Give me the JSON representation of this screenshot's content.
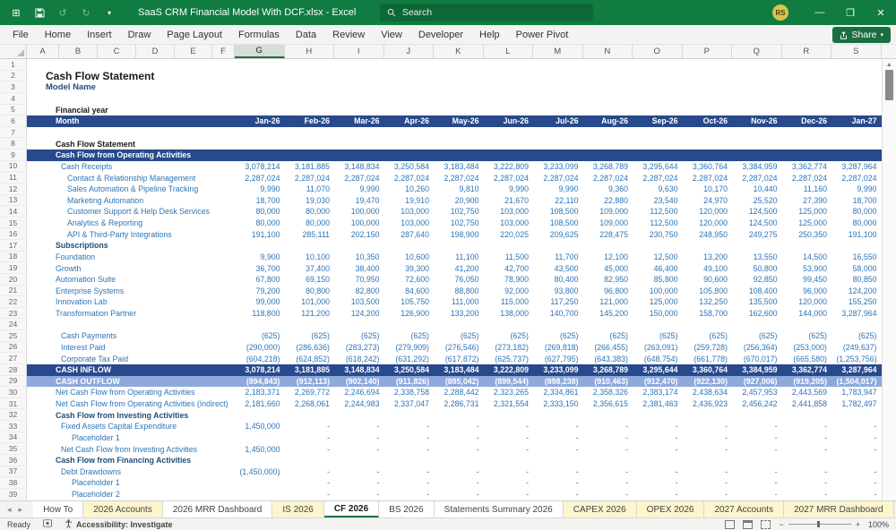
{
  "colors": {
    "titlebar_green": "#107C41",
    "search_green": "#0D6736",
    "share_green": "#1A6E41",
    "banner_navy": "#28498C",
    "banner_light_blue": "#8EA9DB",
    "text_blue": "#2E75B6",
    "text_navy": "#1F4E79",
    "tab_yellow": "#FCF5CE",
    "active_tab_underline": "#1E7145"
  },
  "titlebar": {
    "title": "SaaS CRM Financial Model With DCF.xlsx  -  Excel",
    "search_placeholder": "Search",
    "avatar_initials": "RS",
    "minimize": "—",
    "restore": "❐",
    "close": "✕"
  },
  "menu": {
    "items": [
      "File",
      "Home",
      "Insert",
      "Draw",
      "Page Layout",
      "Formulas",
      "Data",
      "Review",
      "View",
      "Developer",
      "Help",
      "Power Pivot"
    ],
    "share_label": "Share"
  },
  "sheet": {
    "col_letters": [
      "A",
      "B",
      "C",
      "D",
      "E",
      "F",
      "G",
      "H",
      "I",
      "J",
      "K",
      "L",
      "M",
      "N",
      "O",
      "P",
      "Q",
      "R",
      "S"
    ],
    "selected_col": "G",
    "months": [
      "Jan-26",
      "Feb-26",
      "Mar-26",
      "Apr-26",
      "May-26",
      "Jun-26",
      "Jul-26",
      "Aug-26",
      "Sep-26",
      "Oct-26",
      "Nov-26",
      "Dec-26",
      "Jan-27"
    ],
    "rows": [
      {
        "n": 1
      },
      {
        "n": 2,
        "label": "Cash Flow Statement",
        "s": "title",
        "i": 1
      },
      {
        "n": 3,
        "label": "Model Name",
        "s": "model",
        "i": 1
      },
      {
        "n": 4
      },
      {
        "n": 5,
        "label": "Financial year",
        "s": "blackBold",
        "i": 2
      },
      {
        "n": 6,
        "label": "Month",
        "s": "bannerDark",
        "i": 2,
        "v": [
          "Jan-26",
          "Feb-26",
          "Mar-26",
          "Apr-26",
          "May-26",
          "Jun-26",
          "Jul-26",
          "Aug-26",
          "Sep-26",
          "Oct-26",
          "Nov-26",
          "Dec-26",
          "Jan-27"
        ]
      },
      {
        "n": 7
      },
      {
        "n": 8,
        "label": "Cash Flow Statement",
        "s": "blackBold",
        "i": 2
      },
      {
        "n": 9,
        "label": "Cash Flow from Operating Activities",
        "s": "bannerDark",
        "i": 2
      },
      {
        "n": 10,
        "label": "Cash Receipts",
        "s": "blue",
        "i": 3,
        "v": [
          "3,078,214",
          "3,181,885",
          "3,148,834",
          "3,250,584",
          "3,183,484",
          "3,222,809",
          "3,233,099",
          "3,268,789",
          "3,295,644",
          "3,360,764",
          "3,384,959",
          "3,362,774",
          "3,287,964"
        ]
      },
      {
        "n": 11,
        "label": "Contact & Relationship Management",
        "s": "blue",
        "i": 4,
        "v": [
          "2,287,024",
          "2,287,024",
          "2,287,024",
          "2,287,024",
          "2,287,024",
          "2,287,024",
          "2,287,024",
          "2,287,024",
          "2,287,024",
          "2,287,024",
          "2,287,024",
          "2,287,024",
          "2,287,024"
        ]
      },
      {
        "n": 12,
        "label": "Sales Automation & Pipeline Tracking",
        "s": "blue",
        "i": 4,
        "v": [
          "9,990",
          "11,070",
          "9,990",
          "10,260",
          "9,810",
          "9,990",
          "9,990",
          "9,360",
          "9,630",
          "10,170",
          "10,440",
          "11,160",
          "9,990"
        ]
      },
      {
        "n": 13,
        "label": "Marketing Automation",
        "s": "blue",
        "i": 4,
        "v": [
          "18,700",
          "19,030",
          "19,470",
          "19,910",
          "20,900",
          "21,670",
          "22,110",
          "22,880",
          "23,540",
          "24,970",
          "25,520",
          "27,390",
          "18,700"
        ]
      },
      {
        "n": 14,
        "label": "Customer Support & Help Desk Services",
        "s": "blue",
        "i": 4,
        "v": [
          "80,000",
          "80,000",
          "100,000",
          "103,000",
          "102,750",
          "103,000",
          "108,500",
          "109,000",
          "112,500",
          "120,000",
          "124,500",
          "125,000",
          "80,000"
        ]
      },
      {
        "n": 15,
        "label": "Analytics & Reporting",
        "s": "blue",
        "i": 4,
        "v": [
          "80,000",
          "80,000",
          "100,000",
          "103,000",
          "102,750",
          "103,000",
          "108,500",
          "109,000",
          "112,500",
          "120,000",
          "124,500",
          "125,000",
          "80,000"
        ]
      },
      {
        "n": 16,
        "label": "API & Third-Party Integrations",
        "s": "blue",
        "i": 4,
        "v": [
          "191,100",
          "285,111",
          "202,150",
          "287,640",
          "198,900",
          "220,025",
          "209,625",
          "228,475",
          "230,750",
          "248,950",
          "249,275",
          "250,350",
          "191,100"
        ]
      },
      {
        "n": 17,
        "label": "Subscriptions",
        "s": "navyBold",
        "i": 2
      },
      {
        "n": 18,
        "label": "Foundation",
        "s": "blue",
        "i": 2,
        "v": [
          "9,900",
          "10,100",
          "10,350",
          "10,600",
          "11,100",
          "11,500",
          "11,700",
          "12,100",
          "12,500",
          "13,200",
          "13,550",
          "14,500",
          "16,550"
        ]
      },
      {
        "n": 19,
        "label": "Growth",
        "s": "blue",
        "i": 2,
        "v": [
          "36,700",
          "37,400",
          "38,400",
          "39,300",
          "41,200",
          "42,700",
          "43,500",
          "45,000",
          "46,400",
          "49,100",
          "50,800",
          "53,900",
          "58,000"
        ]
      },
      {
        "n": 20,
        "label": "Automation Suite",
        "s": "blue",
        "i": 2,
        "v": [
          "67,800",
          "69,150",
          "70,950",
          "72,600",
          "76,050",
          "78,900",
          "80,400",
          "82,950",
          "85,800",
          "90,600",
          "92,850",
          "99,450",
          "80,850"
        ]
      },
      {
        "n": 21,
        "label": "Enterprise Systems",
        "s": "blue",
        "i": 2,
        "v": [
          "79,200",
          "80,800",
          "82,800",
          "84,600",
          "88,800",
          "92,000",
          "93,800",
          "96,800",
          "100,000",
          "105,800",
          "108,400",
          "96,000",
          "124,200"
        ]
      },
      {
        "n": 22,
        "label": "Innovation Lab",
        "s": "blue",
        "i": 2,
        "v": [
          "99,000",
          "101,000",
          "103,500",
          "105,750",
          "111,000",
          "115,000",
          "117,250",
          "121,000",
          "125,000",
          "132,250",
          "135,500",
          "120,000",
          "155,250"
        ]
      },
      {
        "n": 23,
        "label": "Transformation Partner",
        "s": "blue",
        "i": 2,
        "v": [
          "118,800",
          "121,200",
          "124,200",
          "126,900",
          "133,200",
          "138,000",
          "140,700",
          "145,200",
          "150,000",
          "158,700",
          "162,600",
          "144,000",
          "3,287,964"
        ]
      },
      {
        "n": 24
      },
      {
        "n": 25,
        "label": "Cash Payments",
        "s": "blue",
        "i": 3,
        "v": [
          "(625)",
          "(625)",
          "(625)",
          "(625)",
          "(625)",
          "(625)",
          "(625)",
          "(625)",
          "(625)",
          "(625)",
          "(625)",
          "(625)",
          "(625)"
        ]
      },
      {
        "n": 26,
        "label": "Interest Paid",
        "s": "blue",
        "i": 3,
        "v": [
          "(290,000)",
          "(286,636)",
          "(283,273)",
          "(279,909)",
          "(276,546)",
          "(273,182)",
          "(269,818)",
          "(266,455)",
          "(263,091)",
          "(259,728)",
          "(256,364)",
          "(253,000)",
          "(249,637)"
        ]
      },
      {
        "n": 27,
        "label": "Corporate Tax Paid",
        "s": "blue",
        "i": 3,
        "v": [
          "(604,218)",
          "(624,852)",
          "(618,242)",
          "(631,292)",
          "(617,872)",
          "(625,737)",
          "(627,795)",
          "(643,383)",
          "(648,754)",
          "(661,778)",
          "(670,017)",
          "(665,580)",
          "(1,253,756)"
        ]
      },
      {
        "n": 28,
        "label": "CASH INFLOW",
        "s": "bannerDark",
        "i": 2,
        "v": [
          "3,078,214",
          "3,181,885",
          "3,148,834",
          "3,250,584",
          "3,183,484",
          "3,222,809",
          "3,233,099",
          "3,268,789",
          "3,295,644",
          "3,360,764",
          "3,384,959",
          "3,362,774",
          "3,287,964"
        ]
      },
      {
        "n": 29,
        "label": "CASH OUTFLOW",
        "s": "bannerLight",
        "i": 2,
        "v": [
          "(894,843)",
          "(912,113)",
          "(902,140)",
          "(911,826)",
          "(895,042)",
          "(899,544)",
          "(898,238)",
          "(910,463)",
          "(912,470)",
          "(922,130)",
          "(927,006)",
          "(919,205)",
          "(1,504,017)"
        ]
      },
      {
        "n": 30,
        "label": "Net Cash Flow from Operating Activities",
        "s": "blue",
        "i": 2,
        "v": [
          "2,183,371",
          "2,269,772",
          "2,246,694",
          "2,338,758",
          "2,288,442",
          "2,323,265",
          "2,334,861",
          "2,358,326",
          "2,383,174",
          "2,438,634",
          "2,457,953",
          "2,443,569",
          "1,783,947"
        ]
      },
      {
        "n": 31,
        "label": "Net Cash Flow from Operating Activities (Indirect)",
        "s": "blue",
        "i": 2,
        "v": [
          "2,181,660",
          "2,268,061",
          "2,244,983",
          "2,337,047",
          "2,286,731",
          "2,321,554",
          "2,333,150",
          "2,356,615",
          "2,381,463",
          "2,436,923",
          "2,456,242",
          "2,441,858",
          "1,782,497"
        ]
      },
      {
        "n": 32,
        "label": "Cash Flow from Investing Activities",
        "s": "navyBold",
        "i": 2
      },
      {
        "n": 33,
        "label": "Fixed Assets Capital Expenditure",
        "s": "blue",
        "i": 3,
        "v": [
          "1,450,000",
          "-",
          "-",
          "-",
          "-",
          "-",
          "-",
          "-",
          "-",
          "-",
          "-",
          "-",
          "-"
        ]
      },
      {
        "n": 34,
        "label": "Placeholder 1",
        "s": "blue",
        "i": 5,
        "v": [
          "",
          "-",
          "-",
          "-",
          "-",
          "-",
          "-",
          "-",
          "-",
          "-",
          "-",
          "-",
          "-"
        ]
      },
      {
        "n": 35,
        "label": "Net Cash Flow from Investing Activities",
        "s": "blue",
        "i": 3,
        "v": [
          "1,450,000",
          "-",
          "-",
          "-",
          "-",
          "-",
          "-",
          "-",
          "-",
          "-",
          "-",
          "-",
          "-"
        ]
      },
      {
        "n": 36,
        "label": "Cash Flow from Financing Activities",
        "s": "navyBold",
        "i": 2
      },
      {
        "n": 37,
        "label": "Debt Drawdowns",
        "s": "blue",
        "i": 3,
        "v": [
          "(1,450,000)",
          "-",
          "-",
          "-",
          "-",
          "-",
          "-",
          "-",
          "-",
          "-",
          "-",
          "-",
          "-"
        ]
      },
      {
        "n": 38,
        "label": "Placeholder 1",
        "s": "blue",
        "i": 5,
        "v": [
          "",
          "-",
          "-",
          "-",
          "-",
          "-",
          "-",
          "-",
          "-",
          "-",
          "-",
          "-",
          "-"
        ]
      },
      {
        "n": 39,
        "label": "Placeholder 2",
        "s": "blue",
        "i": 5,
        "v": [
          "",
          "-",
          "-",
          "-",
          "-",
          "-",
          "-",
          "-",
          "-",
          "-",
          "-",
          "-",
          "-"
        ]
      }
    ]
  },
  "tabs": {
    "items": [
      {
        "label": "How To",
        "yellow": false,
        "active": false
      },
      {
        "label": "2026 Accounts",
        "yellow": true,
        "active": false
      },
      {
        "label": "2026 MRR Dashboard",
        "yellow": false,
        "active": false
      },
      {
        "label": "IS 2026",
        "yellow": true,
        "active": false
      },
      {
        "label": "CF 2026",
        "yellow": false,
        "active": true
      },
      {
        "label": "BS 2026",
        "yellow": false,
        "active": false
      },
      {
        "label": "Statements Summary 2026",
        "yellow": false,
        "active": false
      },
      {
        "label": "CAPEX 2026",
        "yellow": true,
        "active": false
      },
      {
        "label": "OPEX 2026",
        "yellow": true,
        "active": false
      },
      {
        "label": "2027 Accounts",
        "yellow": true,
        "active": false
      },
      {
        "label": "2027 MRR Dashboard",
        "yellow": true,
        "active": false
      }
    ],
    "overflow": "•••",
    "add": "+",
    "menu_dots": "⋮"
  },
  "statusbar": {
    "ready": "Ready",
    "accessibility": "Accessibility: Investigate",
    "zoom": "100%"
  }
}
